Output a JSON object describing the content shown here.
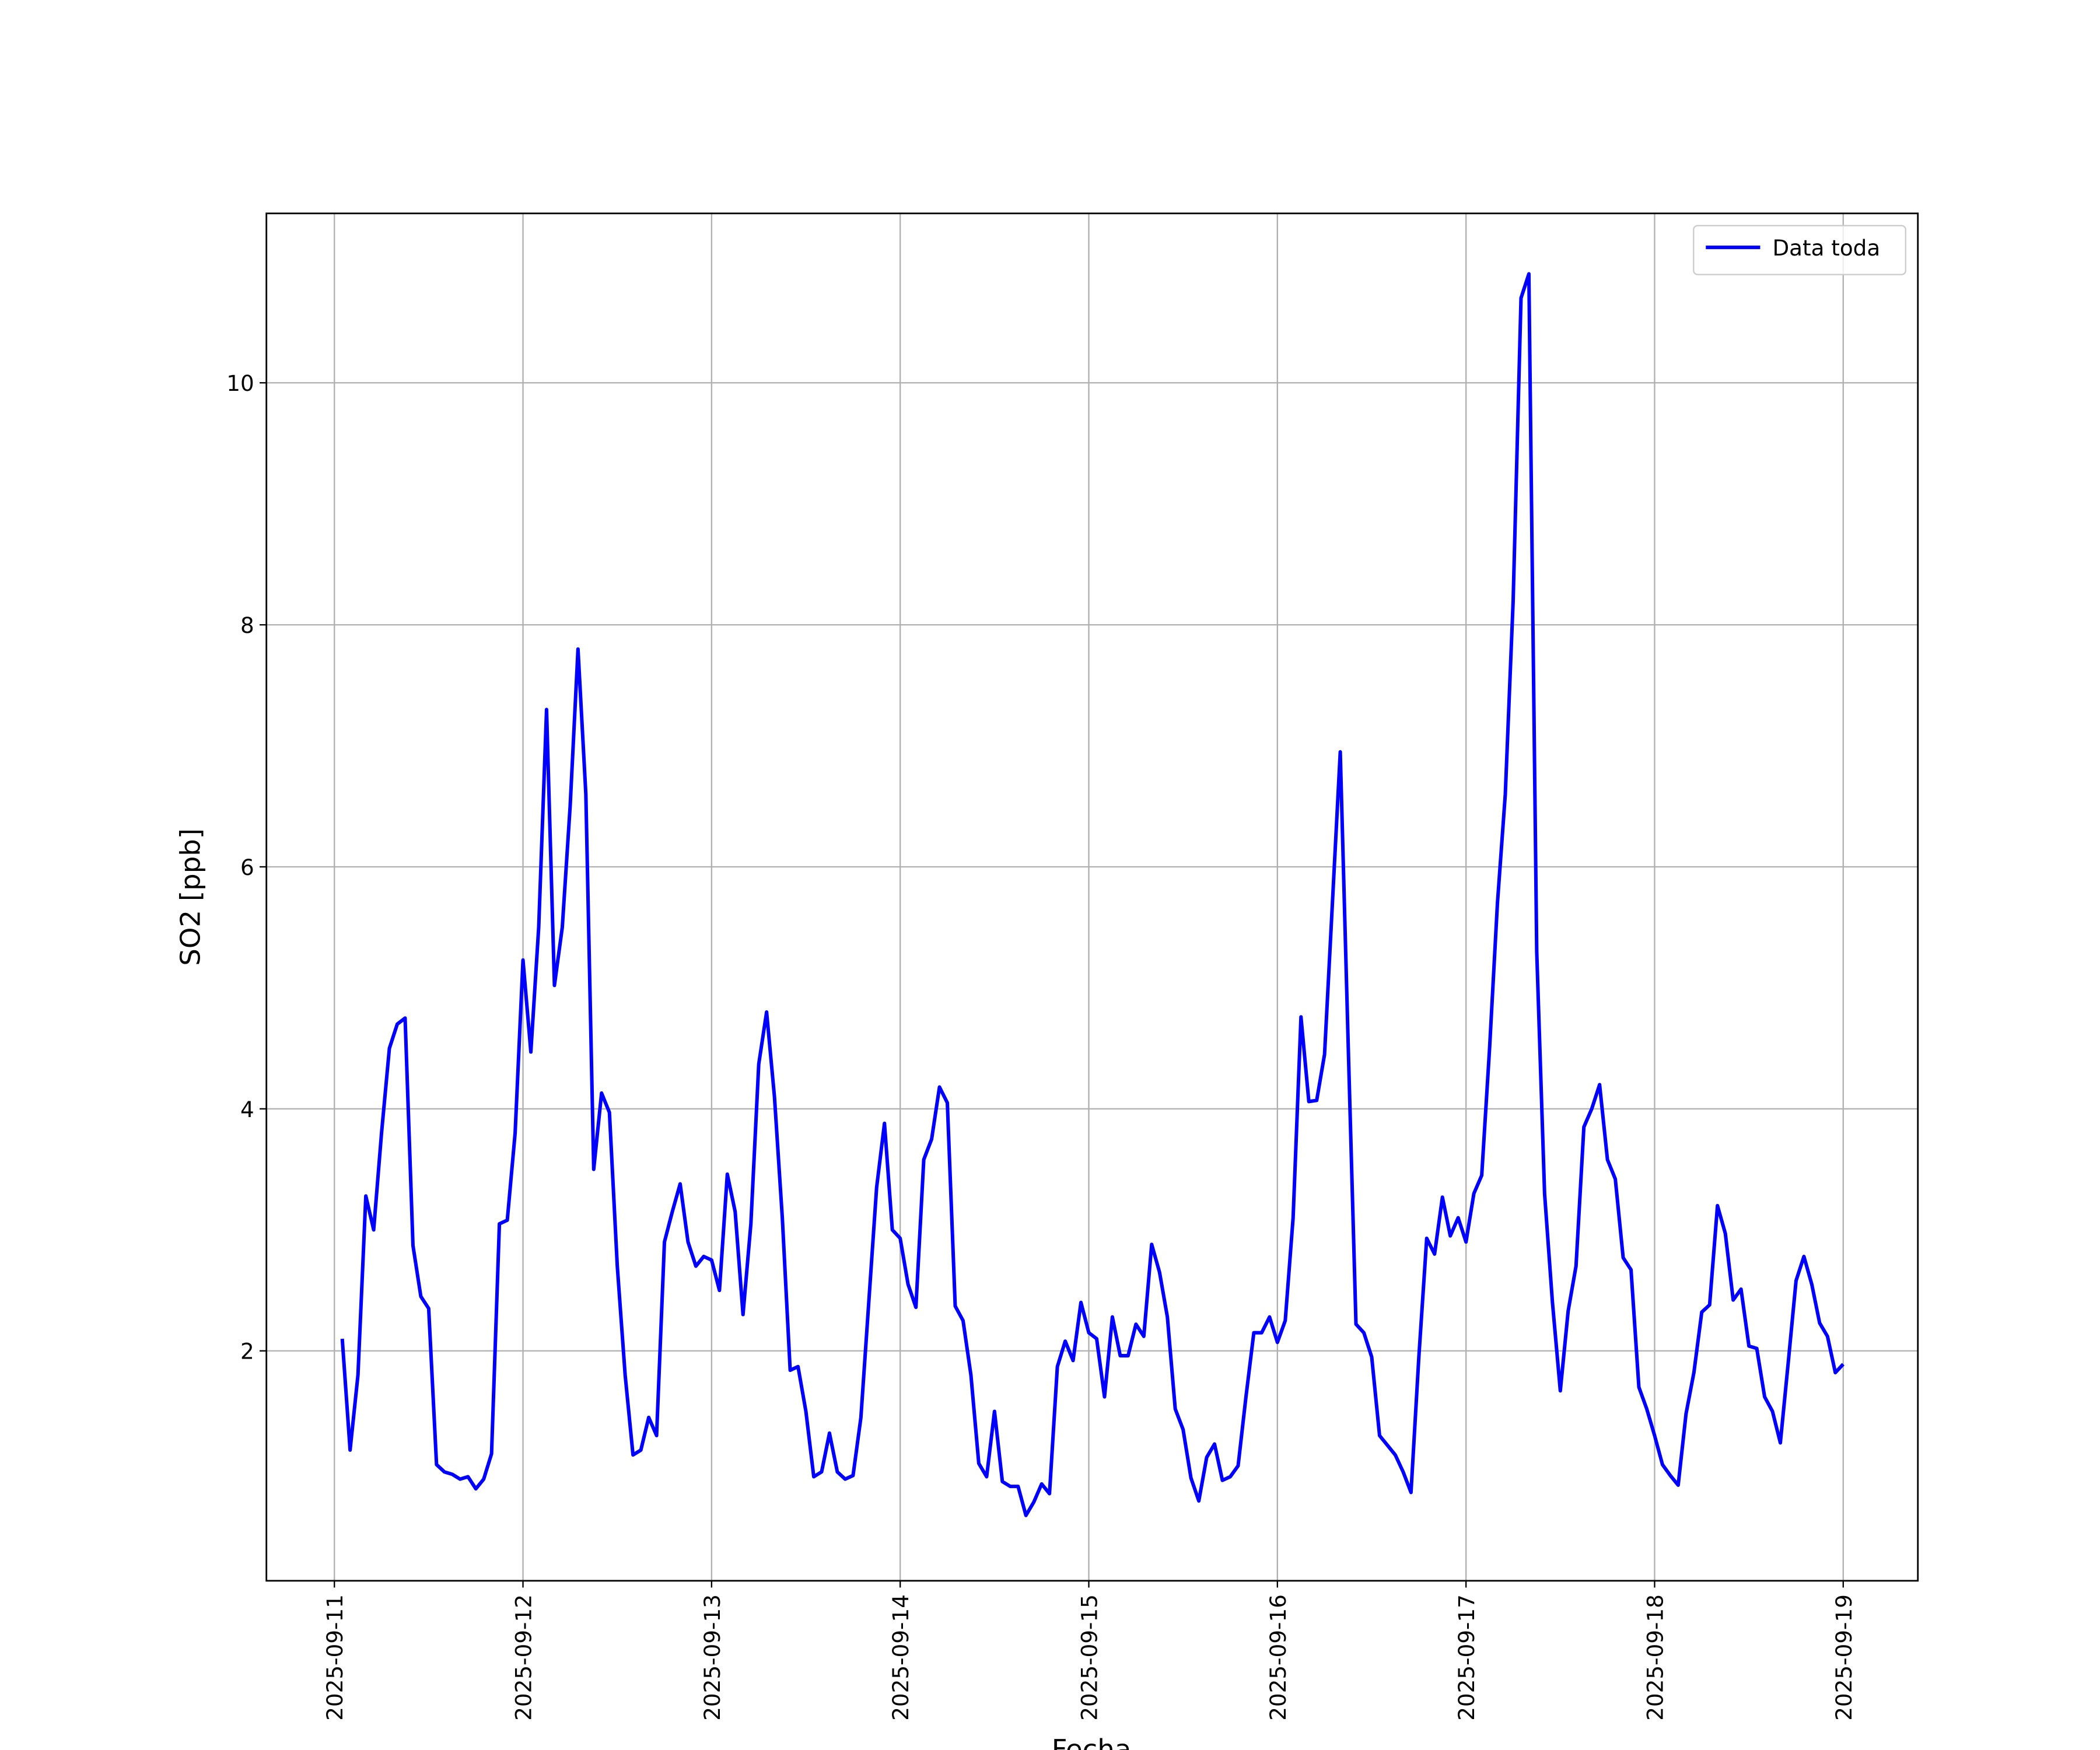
{
  "chart_data": {
    "type": "line",
    "xlabel": "Fecha",
    "ylabel": "SO2 [ppb]",
    "x": [
      "2025-09-11 01:00",
      "2025-09-11 02:00",
      "2025-09-11 03:00",
      "2025-09-11 04:00",
      "2025-09-11 05:00",
      "2025-09-11 06:00",
      "2025-09-11 07:00",
      "2025-09-11 08:00",
      "2025-09-11 09:00",
      "2025-09-11 10:00",
      "2025-09-11 11:00",
      "2025-09-11 12:00",
      "2025-09-11 13:00",
      "2025-09-11 14:00",
      "2025-09-11 15:00",
      "2025-09-11 16:00",
      "2025-09-11 17:00",
      "2025-09-11 18:00",
      "2025-09-11 19:00",
      "2025-09-11 20:00",
      "2025-09-11 21:00",
      "2025-09-11 22:00",
      "2025-09-11 23:00",
      "2025-09-12 00:00",
      "2025-09-12 01:00",
      "2025-09-12 02:00",
      "2025-09-12 03:00",
      "2025-09-12 04:00",
      "2025-09-12 05:00",
      "2025-09-12 06:00",
      "2025-09-12 07:00",
      "2025-09-12 08:00",
      "2025-09-12 09:00",
      "2025-09-12 10:00",
      "2025-09-12 11:00",
      "2025-09-12 12:00",
      "2025-09-12 13:00",
      "2025-09-12 14:00",
      "2025-09-12 15:00",
      "2025-09-12 16:00",
      "2025-09-12 17:00",
      "2025-09-12 18:00",
      "2025-09-12 19:00",
      "2025-09-12 20:00",
      "2025-09-12 21:00",
      "2025-09-12 22:00",
      "2025-09-12 23:00",
      "2025-09-13 00:00",
      "2025-09-13 01:00",
      "2025-09-13 02:00",
      "2025-09-13 03:00",
      "2025-09-13 04:00",
      "2025-09-13 05:00",
      "2025-09-13 06:00",
      "2025-09-13 07:00",
      "2025-09-13 08:00",
      "2025-09-13 09:00",
      "2025-09-13 10:00",
      "2025-09-13 11:00",
      "2025-09-13 12:00",
      "2025-09-13 13:00",
      "2025-09-13 14:00",
      "2025-09-13 15:00",
      "2025-09-13 16:00",
      "2025-09-13 17:00",
      "2025-09-13 18:00",
      "2025-09-13 19:00",
      "2025-09-13 20:00",
      "2025-09-13 21:00",
      "2025-09-13 22:00",
      "2025-09-13 23:00",
      "2025-09-14 00:00",
      "2025-09-14 01:00",
      "2025-09-14 02:00",
      "2025-09-14 03:00",
      "2025-09-14 04:00",
      "2025-09-14 05:00",
      "2025-09-14 06:00",
      "2025-09-14 07:00",
      "2025-09-14 08:00",
      "2025-09-14 09:00",
      "2025-09-14 10:00",
      "2025-09-14 11:00",
      "2025-09-14 12:00",
      "2025-09-14 13:00",
      "2025-09-14 14:00",
      "2025-09-14 15:00",
      "2025-09-14 16:00",
      "2025-09-14 17:00",
      "2025-09-14 18:00",
      "2025-09-14 19:00",
      "2025-09-14 20:00",
      "2025-09-14 21:00",
      "2025-09-14 22:00",
      "2025-09-14 23:00",
      "2025-09-15 00:00",
      "2025-09-15 01:00",
      "2025-09-15 02:00",
      "2025-09-15 03:00",
      "2025-09-15 04:00",
      "2025-09-15 05:00",
      "2025-09-15 06:00",
      "2025-09-15 07:00",
      "2025-09-15 08:00",
      "2025-09-15 09:00",
      "2025-09-15 10:00",
      "2025-09-15 11:00",
      "2025-09-15 12:00",
      "2025-09-15 13:00",
      "2025-09-15 14:00",
      "2025-09-15 15:00",
      "2025-09-15 16:00",
      "2025-09-15 17:00",
      "2025-09-15 18:00",
      "2025-09-15 19:00",
      "2025-09-15 20:00",
      "2025-09-15 21:00",
      "2025-09-15 22:00",
      "2025-09-15 23:00",
      "2025-09-16 00:00",
      "2025-09-16 01:00",
      "2025-09-16 02:00",
      "2025-09-16 03:00",
      "2025-09-16 04:00",
      "2025-09-16 05:00",
      "2025-09-16 06:00",
      "2025-09-16 07:00",
      "2025-09-16 08:00",
      "2025-09-16 09:00",
      "2025-09-16 10:00",
      "2025-09-16 11:00",
      "2025-09-16 12:00",
      "2025-09-16 13:00",
      "2025-09-16 14:00",
      "2025-09-16 15:00",
      "2025-09-16 16:00",
      "2025-09-16 17:00",
      "2025-09-16 18:00",
      "2025-09-16 19:00",
      "2025-09-16 20:00",
      "2025-09-16 21:00",
      "2025-09-16 22:00",
      "2025-09-16 23:00",
      "2025-09-17 00:00",
      "2025-09-17 01:00",
      "2025-09-17 02:00",
      "2025-09-17 03:00",
      "2025-09-17 04:00",
      "2025-09-17 05:00",
      "2025-09-17 06:00",
      "2025-09-17 07:00",
      "2025-09-17 08:00",
      "2025-09-17 09:00",
      "2025-09-17 10:00",
      "2025-09-17 11:00",
      "2025-09-17 12:00",
      "2025-09-17 13:00",
      "2025-09-17 14:00",
      "2025-09-17 15:00",
      "2025-09-17 16:00",
      "2025-09-17 17:00",
      "2025-09-17 18:00",
      "2025-09-17 19:00",
      "2025-09-17 20:00",
      "2025-09-17 21:00",
      "2025-09-17 22:00",
      "2025-09-17 23:00",
      "2025-09-18 00:00",
      "2025-09-18 01:00",
      "2025-09-18 02:00",
      "2025-09-18 03:00",
      "2025-09-18 04:00",
      "2025-09-18 05:00",
      "2025-09-18 06:00",
      "2025-09-18 07:00",
      "2025-09-18 08:00",
      "2025-09-18 09:00",
      "2025-09-18 10:00",
      "2025-09-18 11:00",
      "2025-09-18 12:00",
      "2025-09-18 13:00",
      "2025-09-18 14:00",
      "2025-09-18 15:00",
      "2025-09-18 16:00",
      "2025-09-18 17:00",
      "2025-09-18 18:00",
      "2025-09-18 19:00",
      "2025-09-18 20:00",
      "2025-09-18 21:00",
      "2025-09-18 22:00",
      "2025-09-18 23:00",
      "2025-09-19 00:00"
    ],
    "series": [
      {
        "name": "Data toda",
        "color": "#0000ff",
        "values": [
          2.1,
          1.18,
          1.8,
          3.28,
          3.0,
          3.8,
          4.5,
          4.7,
          4.75,
          2.87,
          2.45,
          2.35,
          1.06,
          1.0,
          0.98,
          0.94,
          0.96,
          0.86,
          0.94,
          1.15,
          3.05,
          3.08,
          3.8,
          5.23,
          4.47,
          5.5,
          7.3,
          5.02,
          5.5,
          6.5,
          7.8,
          6.6,
          3.5,
          4.13,
          3.97,
          2.7,
          1.8,
          1.14,
          1.18,
          1.45,
          1.3,
          2.9,
          3.15,
          3.38,
          2.9,
          2.7,
          2.78,
          2.75,
          2.5,
          3.46,
          3.15,
          2.3,
          3.05,
          4.37,
          4.8,
          4.1,
          3.1,
          1.84,
          1.87,
          1.5,
          0.96,
          1.0,
          1.32,
          1.0,
          0.94,
          0.97,
          1.45,
          2.4,
          3.35,
          3.88,
          3.0,
          2.93,
          2.55,
          2.36,
          3.58,
          3.75,
          4.18,
          4.05,
          2.37,
          2.25,
          1.8,
          1.07,
          0.96,
          1.5,
          0.92,
          0.88,
          0.88,
          0.64,
          0.75,
          0.9,
          0.82,
          1.87,
          2.08,
          1.92,
          2.4,
          2.15,
          2.1,
          1.62,
          2.28,
          1.96,
          1.96,
          2.22,
          2.12,
          2.88,
          2.65,
          2.28,
          1.52,
          1.35,
          0.95,
          0.76,
          1.12,
          1.23,
          0.93,
          0.96,
          1.05,
          1.62,
          2.15,
          2.15,
          2.28,
          2.07,
          2.25,
          3.1,
          4.76,
          4.06,
          4.07,
          4.45,
          5.7,
          6.95,
          4.55,
          2.22,
          2.15,
          1.95,
          1.3,
          1.22,
          1.14,
          1.0,
          0.83,
          1.95,
          2.93,
          2.8,
          3.27,
          2.95,
          3.1,
          2.9,
          3.3,
          3.45,
          4.5,
          5.7,
          6.6,
          8.2,
          10.7,
          10.9,
          5.3,
          3.3,
          2.4,
          1.67,
          2.33,
          2.7,
          3.85,
          4.0,
          4.2,
          3.58,
          3.42,
          2.77,
          2.67,
          1.7,
          1.52,
          1.3,
          1.06,
          0.97,
          0.89,
          1.48,
          1.82,
          2.32,
          2.38,
          3.2,
          2.97,
          2.42,
          2.51,
          2.04,
          2.02,
          1.62,
          1.5,
          1.24,
          1.9,
          2.58,
          2.78,
          2.55,
          2.23,
          2.12,
          1.82,
          1.89
        ]
      }
    ],
    "xlim": [
      "2025-09-10 15:21",
      "2025-09-19 09:30"
    ],
    "xticks": [
      "2025-09-11",
      "2025-09-12",
      "2025-09-13",
      "2025-09-14",
      "2025-09-15",
      "2025-09-16",
      "2025-09-17",
      "2025-09-18",
      "2025-09-19"
    ],
    "ylim": [
      0.1,
      11.4
    ],
    "yticks": [
      2,
      4,
      6,
      8,
      10
    ],
    "grid": true,
    "legend": "upper right"
  }
}
